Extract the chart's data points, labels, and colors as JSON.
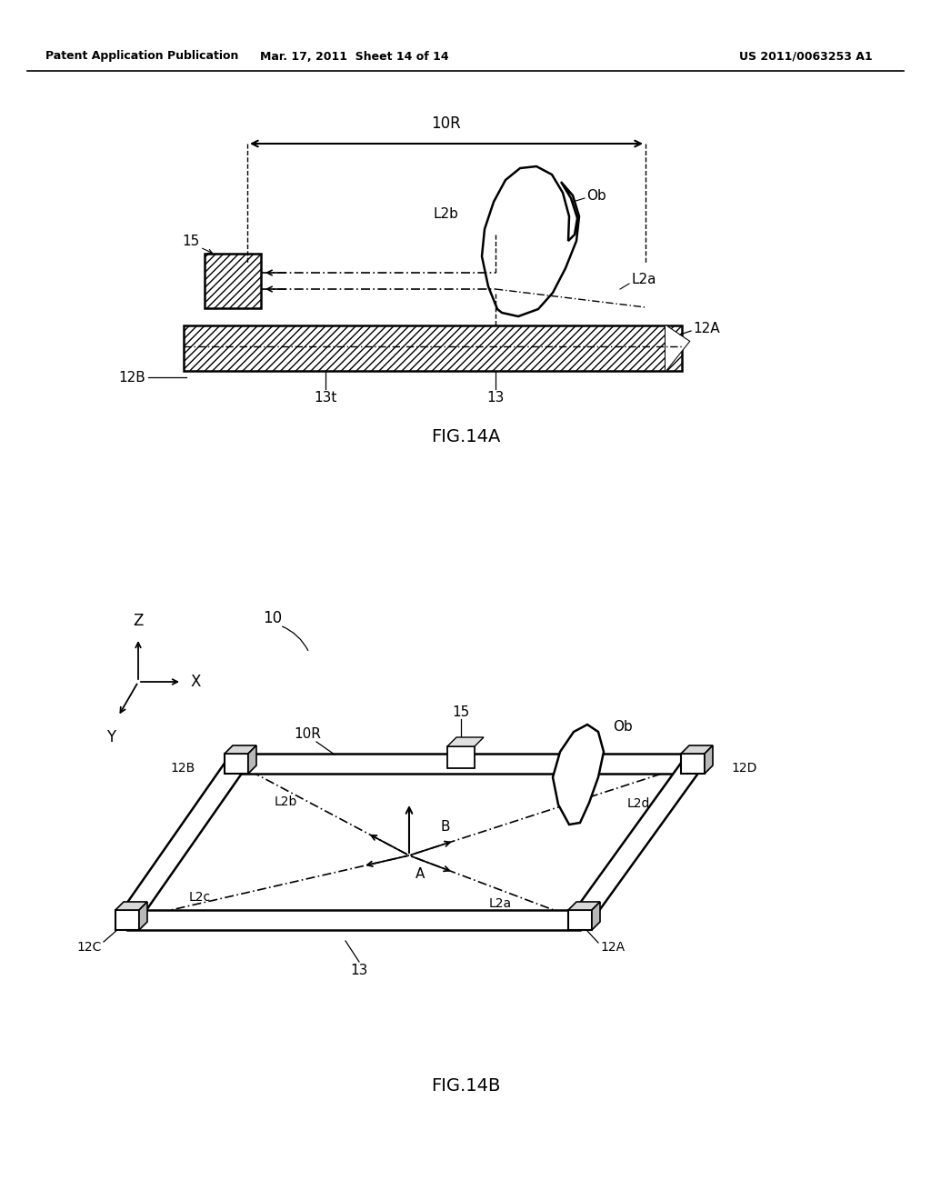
{
  "bg_color": "#ffffff",
  "header_left": "Patent Application Publication",
  "header_mid": "Mar. 17, 2011  Sheet 14 of 14",
  "header_right": "US 2011/0063253 A1",
  "fig14a_label": "FIG.14A",
  "fig14b_label": "FIG.14B",
  "line_color": "#000000"
}
